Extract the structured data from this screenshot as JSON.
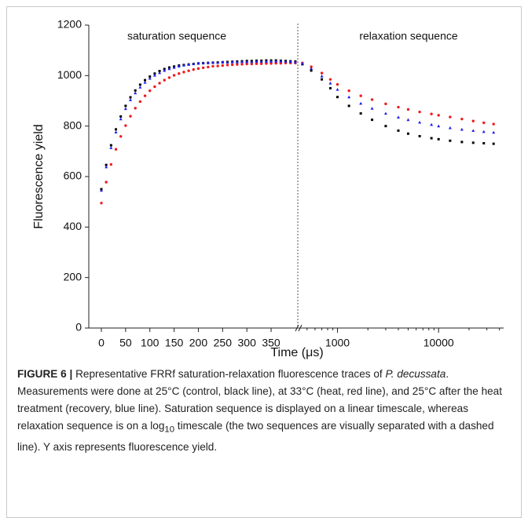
{
  "chart_data": {
    "type": "scatter",
    "ylabel": "Fluorescence yield",
    "xlabel": "Time (μs)",
    "annotations": [
      "saturation sequence",
      "relaxation sequence"
    ],
    "ylim": [
      0,
      1200
    ],
    "yticks": [
      0,
      200,
      400,
      600,
      800,
      1000,
      1200
    ],
    "xlim": [
      0,
      405
    ],
    "xticks": [
      0,
      50,
      100,
      150,
      200,
      250,
      300,
      350
    ],
    "x2lim": [
      405,
      44000
    ],
    "x2ticks": [
      1000,
      10000
    ],
    "x2log": true,
    "x": [
      0,
      10,
      20,
      30,
      40,
      50,
      60,
      70,
      80,
      90,
      100,
      110,
      120,
      130,
      140,
      150,
      160,
      170,
      180,
      190,
      200,
      210,
      220,
      230,
      240,
      250,
      260,
      270,
      280,
      290,
      300,
      310,
      320,
      330,
      340,
      350,
      360,
      370,
      380,
      390,
      400,
      450,
      550,
      700,
      850,
      1000,
      1300,
      1700,
      2200,
      3000,
      4000,
      5000,
      6500,
      8500,
      10000,
      13000,
      17000,
      22000,
      28000,
      35000
    ],
    "series": [
      {
        "color": "#000000",
        "marker": "square",
        "values": [
          550,
          646,
          724,
          787,
          838,
          880,
          914,
          941,
          964,
          982,
          996,
          1008,
          1018,
          1026,
          1032,
          1036,
          1040,
          1042,
          1044,
          1046,
          1048,
          1049,
          1050,
          1051,
          1052,
          1053,
          1054,
          1055,
          1056,
          1057,
          1058,
          1058,
          1059,
          1059,
          1060,
          1060,
          1060,
          1059,
          1058,
          1057,
          1056,
          1045,
          1020,
          985,
          950,
          915,
          880,
          850,
          825,
          800,
          782,
          770,
          760,
          752,
          748,
          742,
          737,
          734,
          732,
          730
        ]
      },
      {
        "color": "#ee1c1c",
        "marker": "circle",
        "values": [
          495,
          578,
          648,
          708,
          759,
          802,
          839,
          871,
          897,
          920,
          940,
          956,
          970,
          982,
          992,
          1001,
          1008,
          1014,
          1019,
          1024,
          1028,
          1031,
          1034,
          1037,
          1038,
          1040,
          1042,
          1043,
          1044,
          1045,
          1046,
          1046,
          1047,
          1047,
          1048,
          1048,
          1049,
          1049,
          1050,
          1050,
          1050,
          1050,
          1035,
          1010,
          985,
          965,
          940,
          920,
          905,
          888,
          875,
          866,
          856,
          848,
          843,
          836,
          828,
          820,
          813,
          808
        ]
      },
      {
        "color": "#1f1fee",
        "marker": "triangle",
        "values": [
          545,
          638,
          714,
          776,
          828,
          869,
          904,
          931,
          954,
          973,
          989,
          1001,
          1011,
          1020,
          1027,
          1032,
          1037,
          1041,
          1044,
          1047,
          1049,
          1050,
          1051,
          1052,
          1052,
          1053,
          1053,
          1054,
          1054,
          1055,
          1055,
          1055,
          1056,
          1056,
          1056,
          1057,
          1057,
          1057,
          1056,
          1055,
          1054,
          1048,
          1028,
          998,
          970,
          945,
          915,
          890,
          870,
          850,
          835,
          825,
          815,
          806,
          800,
          793,
          787,
          782,
          778,
          775
        ]
      }
    ]
  },
  "caption": {
    "label": "FIGURE 6 |",
    "parts": [
      "Representative FRRf saturation-relaxation fluorescence traces of ",
      "P. decussata",
      ". Measurements were done at 25°C (control, black line), at 33°C (heat, red line), and 25°C after the heat treatment (recovery, blue line). Saturation sequence is displayed on a linear timescale, whereas relaxation sequence is on a log",
      "10",
      " timescale (the two sequences are visually separated with a dashed line). Y axis represents fluorescence yield."
    ]
  }
}
